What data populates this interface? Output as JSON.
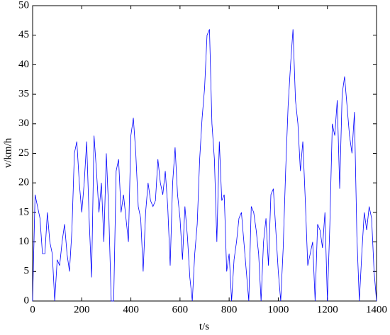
{
  "chart_data": {
    "type": "line",
    "x_label": "t/s",
    "y_label": "v/km/h",
    "x": [
      0,
      10,
      20,
      30,
      40,
      50,
      60,
      70,
      80,
      90,
      100,
      110,
      120,
      130,
      140,
      150,
      160,
      170,
      180,
      190,
      200,
      210,
      220,
      230,
      240,
      250,
      260,
      270,
      280,
      290,
      300,
      310,
      320,
      330,
      340,
      350,
      360,
      370,
      380,
      390,
      400,
      410,
      420,
      430,
      440,
      450,
      460,
      470,
      480,
      490,
      500,
      510,
      520,
      530,
      540,
      550,
      560,
      570,
      580,
      590,
      600,
      610,
      620,
      630,
      640,
      650,
      660,
      670,
      680,
      690,
      700,
      710,
      720,
      730,
      740,
      750,
      760,
      770,
      780,
      790,
      800,
      810,
      820,
      830,
      840,
      850,
      860,
      870,
      880,
      890,
      900,
      910,
      920,
      930,
      940,
      950,
      960,
      970,
      980,
      990,
      1000,
      1010,
      1020,
      1030,
      1040,
      1050,
      1060,
      1070,
      1080,
      1090,
      1100,
      1110,
      1120,
      1130,
      1140,
      1150,
      1160,
      1170,
      1180,
      1190,
      1200,
      1210,
      1220,
      1230,
      1240,
      1250,
      1260,
      1270,
      1280,
      1290,
      1300,
      1310,
      1320,
      1330,
      1340,
      1350,
      1360,
      1370,
      1380,
      1390,
      1400
    ],
    "series": [
      {
        "color": "#0000ff",
        "values": [
          0,
          18,
          16,
          14,
          8,
          8,
          15,
          10,
          8,
          0,
          7,
          6,
          10,
          13,
          8,
          5,
          12,
          25,
          27,
          20,
          15,
          20,
          27,
          14,
          4,
          28,
          22,
          15,
          20,
          10,
          25,
          15,
          0,
          0,
          22,
          24,
          15,
          18,
          14,
          10,
          28,
          31,
          25,
          16,
          14,
          5,
          15,
          20,
          17,
          16,
          17,
          24,
          20,
          18,
          22,
          16,
          6,
          20,
          26,
          18,
          14,
          7,
          16,
          11,
          4,
          0,
          8,
          13,
          24,
          31,
          36,
          45,
          46,
          30,
          24,
          10,
          27,
          17,
          18,
          5,
          8,
          0,
          7,
          10,
          14,
          15,
          10,
          5,
          0,
          16,
          15,
          12,
          8,
          0,
          10,
          14,
          6,
          18,
          19,
          12,
          5,
          0,
          9,
          22,
          33,
          40,
          46,
          34,
          30,
          22,
          27,
          17,
          6,
          8,
          10,
          0,
          13,
          12,
          9,
          15,
          0,
          13,
          30,
          28,
          34,
          19,
          35,
          38,
          33,
          28,
          25,
          32,
          11,
          0,
          8,
          15,
          12,
          16,
          14,
          5,
          0
        ]
      }
    ],
    "xlim": [
      0,
      1400
    ],
    "ylim": [
      0,
      50
    ],
    "xticks": [
      0,
      200,
      400,
      600,
      800,
      1000,
      1200,
      1400
    ],
    "yticks": [
      0,
      5,
      10,
      15,
      20,
      25,
      30,
      35,
      40,
      45,
      50
    ]
  }
}
